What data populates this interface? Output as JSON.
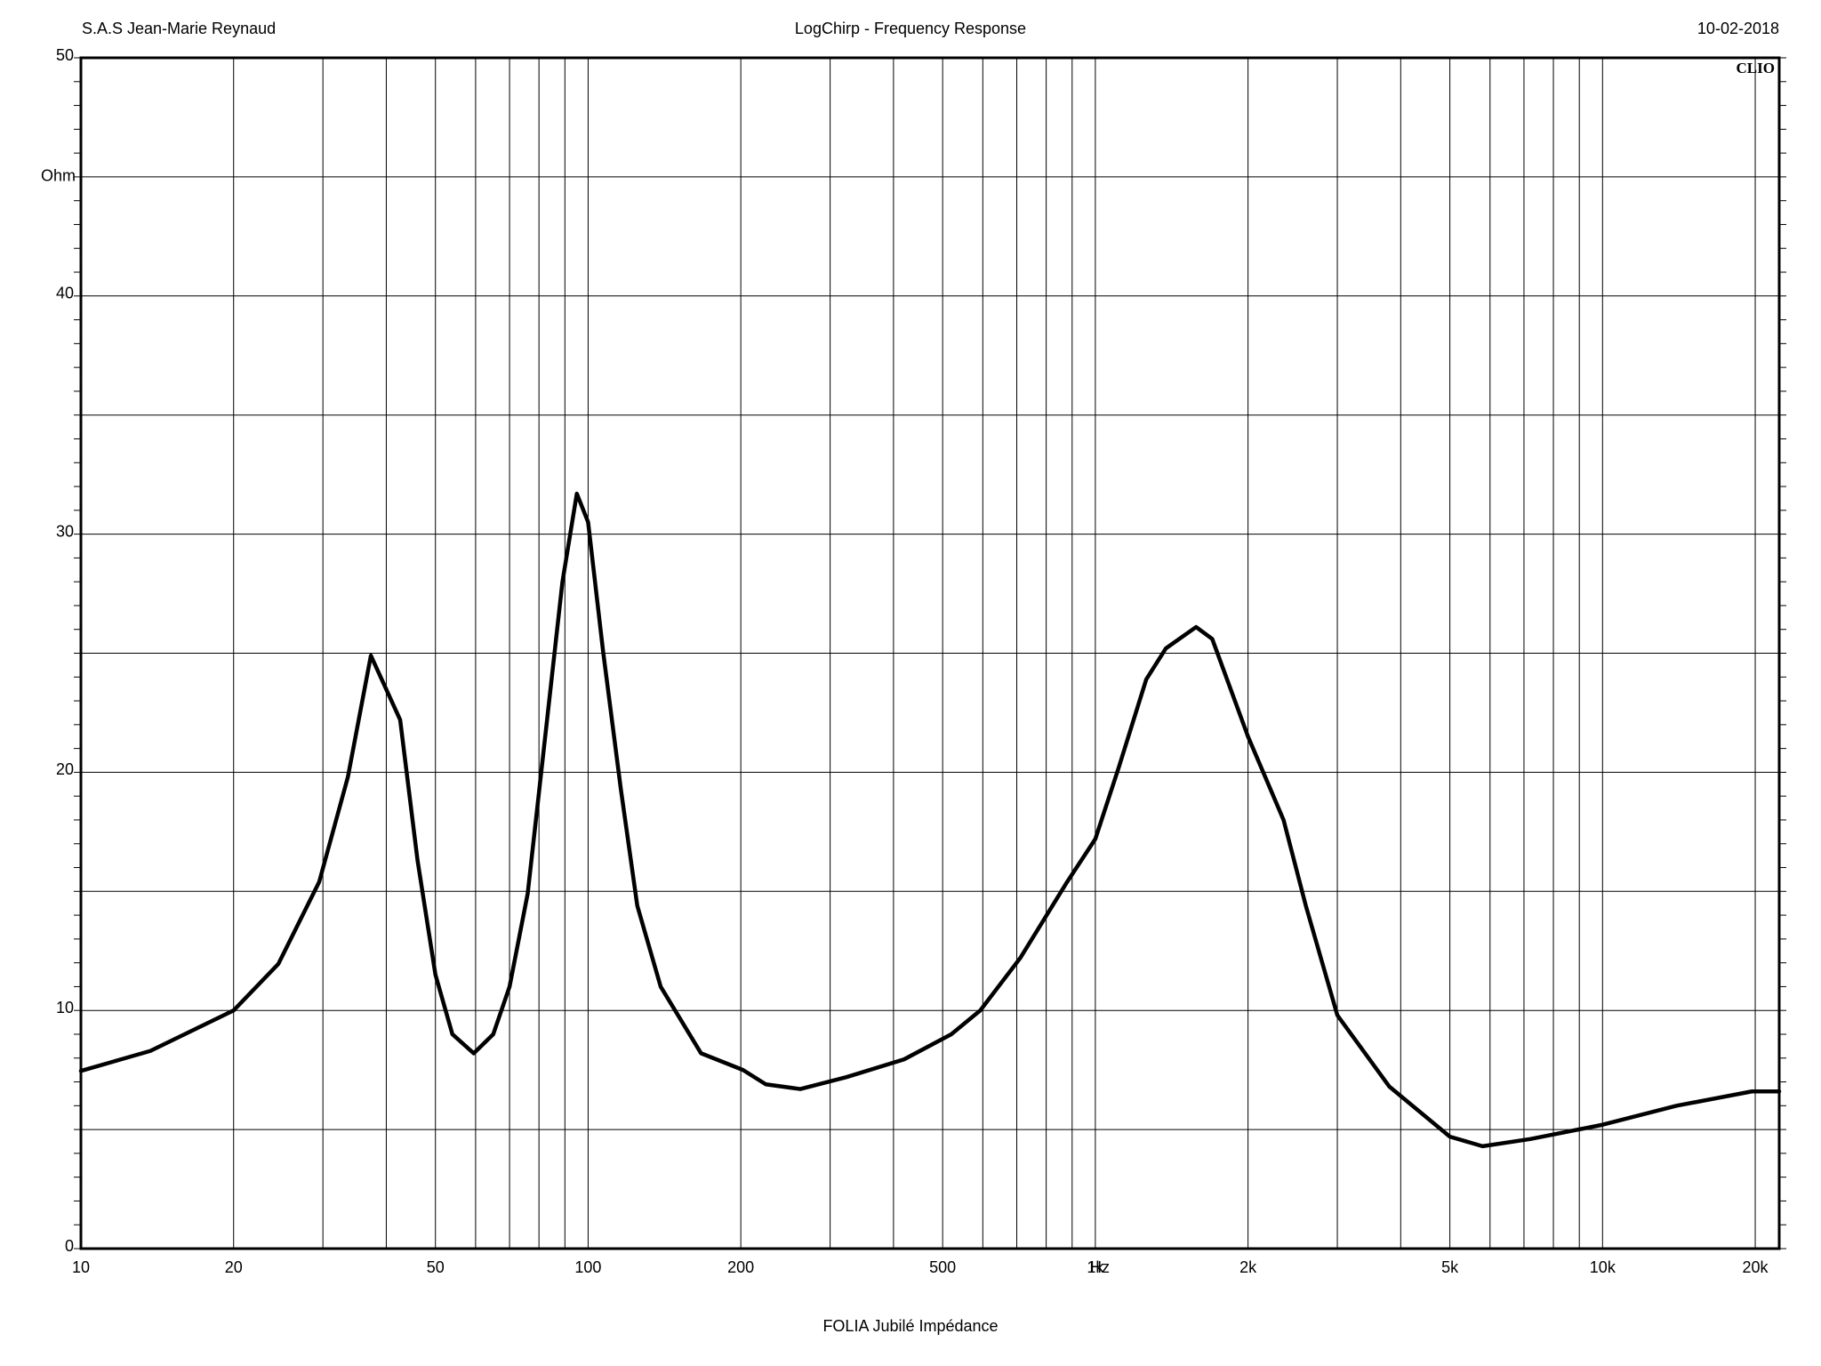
{
  "chart_data": {
    "type": "line",
    "header_left": "S.A.S Jean-Marie Reynaud",
    "title": "LogChirp - Frequency Response",
    "date": "10-02-2018",
    "badge": "CLIO",
    "footer": "FOLIA Jubilé Impédance",
    "y_unit": "Ohm",
    "x_unit": "Hz",
    "xscale": "log",
    "xlim": [
      10,
      22300
    ],
    "ylim": [
      0,
      50
    ],
    "xticks": [
      10,
      20,
      50,
      100,
      200,
      500,
      {
        "value": 1000,
        "label": "1k"
      },
      {
        "value": 2000,
        "label": "2k"
      },
      {
        "value": 5000,
        "label": "5k"
      },
      {
        "value": 10000,
        "label": "10k"
      },
      {
        "value": 20000,
        "label": "20k"
      }
    ],
    "xgrid": [
      10,
      20,
      30,
      40,
      50,
      60,
      70,
      80,
      90,
      100,
      200,
      300,
      400,
      500,
      600,
      700,
      800,
      900,
      1000,
      2000,
      3000,
      4000,
      5000,
      6000,
      7000,
      8000,
      9000,
      10000,
      20000
    ],
    "yticks": [
      0,
      10,
      20,
      30,
      40,
      50
    ],
    "ygrid": [
      0,
      5,
      10,
      15,
      20,
      25,
      30,
      35,
      40,
      45,
      50
    ],
    "yminor": [
      0,
      1,
      2,
      3,
      4,
      5,
      6,
      7,
      8,
      9,
      10,
      11,
      12,
      13,
      14,
      15,
      16,
      17,
      18,
      19,
      20,
      21,
      22,
      23,
      24,
      25,
      26,
      27,
      28,
      29,
      30,
      31,
      32,
      33,
      34,
      35,
      36,
      37,
      38,
      39,
      40,
      41,
      42,
      43,
      44,
      45,
      46,
      47,
      48,
      49,
      50
    ],
    "grid": true,
    "color": "#000000",
    "x": [
      10,
      13.7,
      20,
      24.5,
      29.5,
      33.6,
      37.3,
      42.6,
      46.1,
      50,
      54,
      59.5,
      65,
      70,
      76,
      82,
      89,
      95,
      100,
      107,
      116,
      125,
      139,
      167,
      202,
      224,
      262,
      323,
      420,
      520,
      593,
      711,
      880,
      1000,
      1112,
      1260,
      1377,
      1580,
      1700,
      2000,
      2350,
      2600,
      3000,
      3800,
      5000,
      5800,
      7200,
      10000,
      14000,
      19700,
      22300
    ],
    "values": [
      7.46,
      8.3,
      10.0,
      11.95,
      15.4,
      19.8,
      24.9,
      22.2,
      16.3,
      11.5,
      9.0,
      8.2,
      9.0,
      11.0,
      14.9,
      21.2,
      28.0,
      31.7,
      30.5,
      25.1,
      19.3,
      14.4,
      11.0,
      8.2,
      7.5,
      6.9,
      6.7,
      7.2,
      7.95,
      9.0,
      10.0,
      12.2,
      15.4,
      17.2,
      20.2,
      23.9,
      25.2,
      26.1,
      25.6,
      21.5,
      18.0,
      14.4,
      9.8,
      6.8,
      4.7,
      4.3,
      4.6,
      5.2,
      6.0,
      6.6,
      6.6
    ]
  }
}
